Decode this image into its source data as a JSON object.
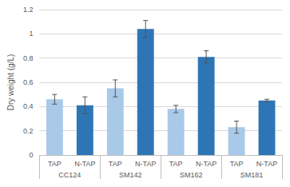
{
  "chart_data": {
    "type": "bar",
    "y_label": "Dry weight (g/L)",
    "categories": [
      "CC124",
      "SM142",
      "SM162",
      "SM181"
    ],
    "series": [
      {
        "name": "TAP",
        "color": "#a9c9e8",
        "values": [
          0.46,
          0.55,
          0.38,
          0.23
        ],
        "errors": [
          0.04,
          0.07,
          0.03,
          0.05
        ]
      },
      {
        "name": "N-TAP",
        "color": "#2e75b6",
        "values": [
          0.41,
          1.04,
          0.81,
          0.45
        ],
        "errors": [
          0.07,
          0.07,
          0.05,
          0.01
        ]
      }
    ],
    "ylim": [
      0,
      1.2
    ],
    "yticks": [
      0,
      0.2,
      0.4,
      0.6,
      0.8,
      1,
      1.2
    ],
    "grid": true
  }
}
